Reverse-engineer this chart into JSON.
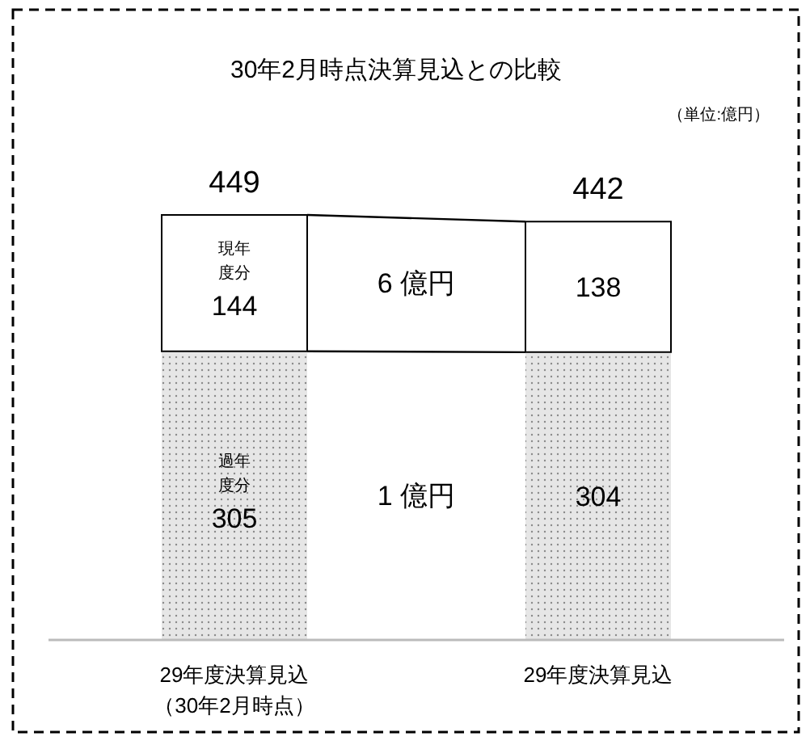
{
  "chart_data": {
    "type": "bar",
    "stacked": true,
    "title": "30年2月時点決算見込との比較",
    "categories": [
      "29年度決算見込（30年2月時点）",
      "29年度決算見込"
    ],
    "series": [
      {
        "name": "過年度分",
        "color": "#e6e6e6",
        "values": [
          305,
          304
        ]
      },
      {
        "name": "現年度分",
        "color": "#ffffff",
        "values": [
          144,
          138
        ]
      }
    ],
    "data_labels": true,
    "totals": [
      "449",
      "442"
    ],
    "annotations": [
      "（単位:億円）",
      "1 億円",
      "6 億円"
    ]
  }
}
